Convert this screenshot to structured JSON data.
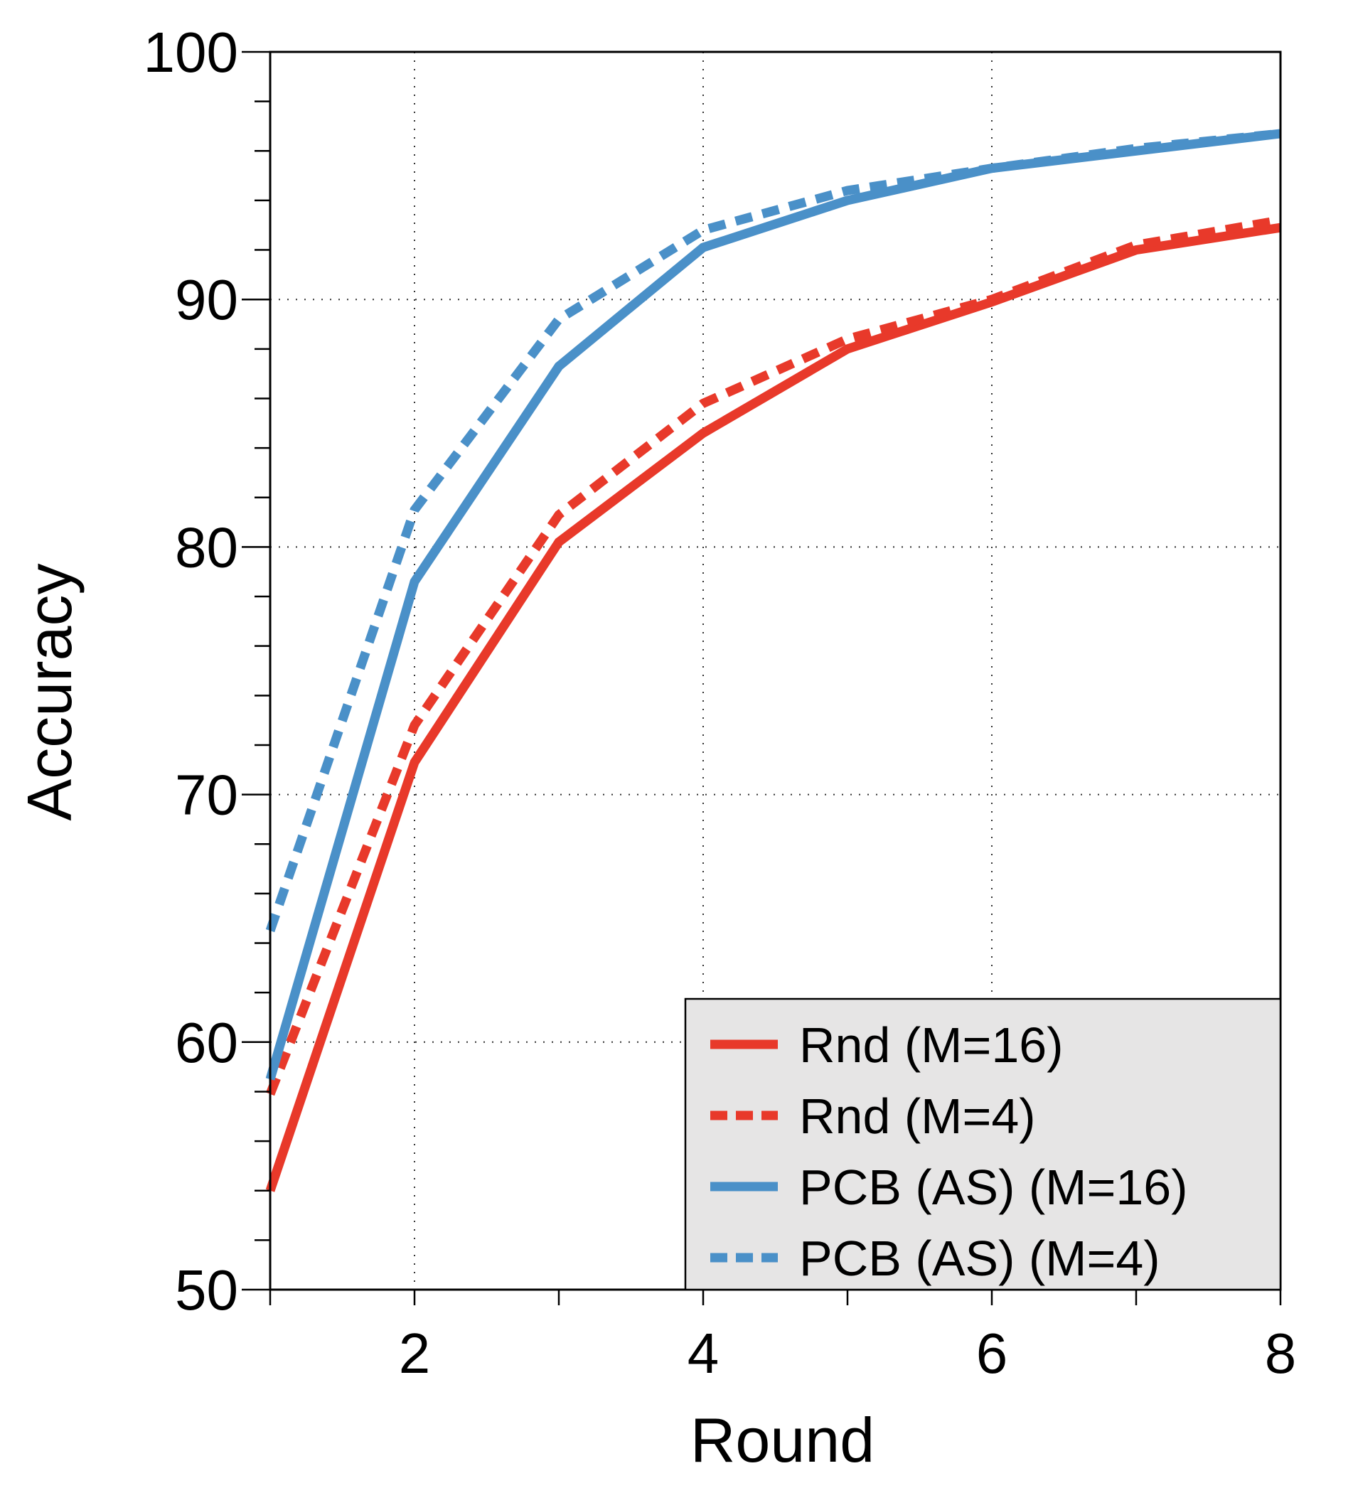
{
  "chart_data": {
    "type": "line",
    "title": "",
    "xlabel": "Round",
    "ylabel": "Accuracy",
    "xlim": [
      1,
      8
    ],
    "ylim": [
      50,
      100
    ],
    "xticks": [
      2,
      4,
      6,
      8
    ],
    "yticks": [
      50,
      60,
      70,
      80,
      90,
      100
    ],
    "grid": true,
    "legend_position": "bottom-right",
    "x": [
      1,
      2,
      3,
      4,
      5,
      6,
      7,
      8
    ],
    "series": [
      {
        "name": "Rnd (M=16)",
        "color": "#e8392a",
        "dash": "solid",
        "values": [
          54.0,
          71.3,
          80.2,
          84.6,
          88.0,
          89.9,
          92.0,
          92.9
        ]
      },
      {
        "name": "Rnd (M=4)",
        "color": "#e8392a",
        "dash": "dashed",
        "values": [
          57.9,
          72.8,
          81.3,
          85.8,
          88.4,
          90.0,
          92.2,
          93.2
        ]
      },
      {
        "name": "PCB (AS) (M=16)",
        "color": "#4a90c8",
        "dash": "solid",
        "values": [
          58.5,
          78.6,
          87.3,
          92.1,
          94.0,
          95.3,
          96.0,
          96.7
        ]
      },
      {
        "name": "PCB (AS) (M=4)",
        "color": "#4a90c8",
        "dash": "dashed",
        "values": [
          64.5,
          81.5,
          89.2,
          92.8,
          94.4,
          95.3,
          96.1,
          96.7
        ]
      }
    ]
  }
}
